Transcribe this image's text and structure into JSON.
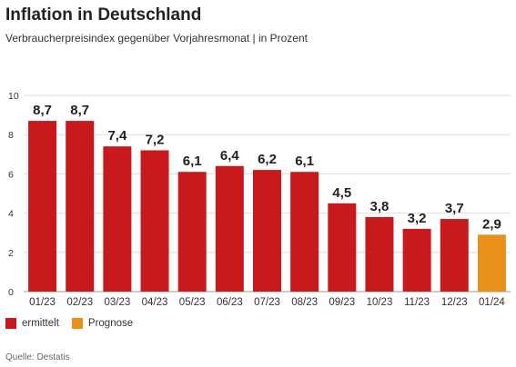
{
  "title": "Inflation in Deutschland",
  "subtitle": "Verbraucherpreisindex gegenüber Vorjahresmonat | in Prozent",
  "legend": [
    {
      "label": "ermittelt",
      "color": "#c8191d"
    },
    {
      "label": "Prognose",
      "color": "#e8901a"
    }
  ],
  "source": "Quelle: Destatis",
  "chart_data": {
    "type": "bar",
    "categories": [
      "01/23",
      "02/23",
      "03/23",
      "04/23",
      "05/23",
      "06/23",
      "07/23",
      "08/23",
      "09/23",
      "10/23",
      "11/23",
      "12/23",
      "01/24"
    ],
    "values": [
      8.7,
      8.7,
      7.4,
      7.2,
      6.1,
      6.4,
      6.2,
      6.1,
      4.5,
      3.8,
      3.2,
      3.7,
      2.9
    ],
    "data_labels": [
      "8,7",
      "8,7",
      "7,4",
      "7,2",
      "6,1",
      "6,4",
      "6,2",
      "6,1",
      "4,5",
      "3,8",
      "3,2",
      "3,7",
      "2,9"
    ],
    "bar_status": [
      "ermittelt",
      "ermittelt",
      "ermittelt",
      "ermittelt",
      "ermittelt",
      "ermittelt",
      "ermittelt",
      "ermittelt",
      "ermittelt",
      "ermittelt",
      "ermittelt",
      "ermittelt",
      "Prognose"
    ],
    "y_ticks": [
      0,
      2,
      4,
      6,
      8,
      10
    ],
    "ylim": [
      0,
      10
    ],
    "grid": true,
    "legend_position": "bottom-left"
  }
}
